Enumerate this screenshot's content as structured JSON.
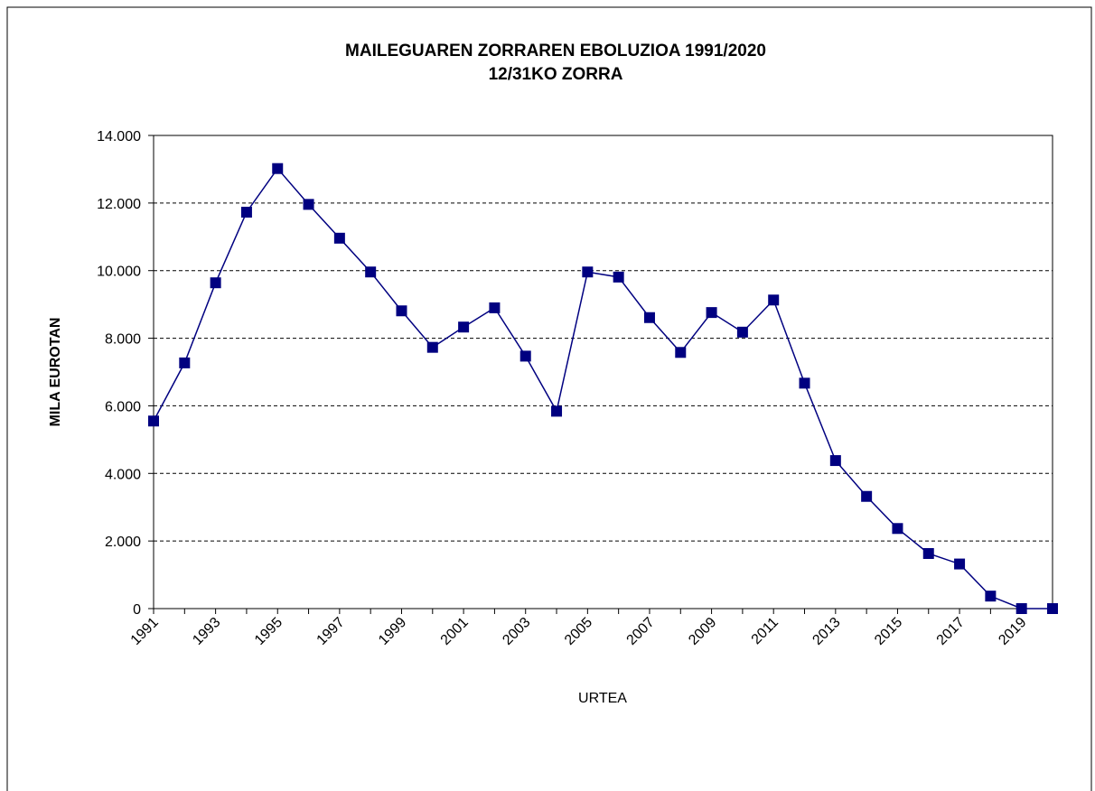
{
  "chart_data": {
    "type": "line",
    "title": "MAILEGUAREN ZORRAREN EBOLUZIOA 1991/2020",
    "subtitle": "12/31KO ZORRA",
    "x_label": "URTEA",
    "y_label": "MILA EUROTAN",
    "categories": [
      "1991",
      null,
      "1993",
      null,
      "1995",
      null,
      "1997",
      null,
      "1999",
      null,
      "2001",
      null,
      "2003",
      null,
      "2005",
      null,
      "2007",
      null,
      "2009",
      null,
      "2011",
      null,
      "2013",
      null,
      "2015",
      null,
      "2017",
      null,
      "2019",
      null
    ],
    "series": [
      {
        "color": "#000080",
        "values": [
          5550,
          7270,
          9640,
          11730,
          13020,
          11960,
          10960,
          9960,
          8810,
          7730,
          8330,
          8900,
          7470,
          5840,
          9960,
          9810,
          8610,
          7580,
          8760,
          8180,
          9130,
          6670,
          4380,
          3320,
          2370,
          1630,
          1320,
          370,
          0,
          0
        ]
      }
    ],
    "ylim": [
      0,
      14000
    ],
    "yticks": [
      0,
      {
        "value": 2000,
        "label": "2.000"
      },
      {
        "value": 4000,
        "label": "4.000"
      },
      {
        "value": 6000,
        "label": "6.000"
      },
      {
        "value": 8000,
        "label": "8.000"
      },
      {
        "value": 10000,
        "label": "10.000"
      },
      {
        "value": 12000,
        "label": "12.000"
      },
      {
        "value": 14000,
        "label": "14.000"
      }
    ],
    "grid": true
  }
}
